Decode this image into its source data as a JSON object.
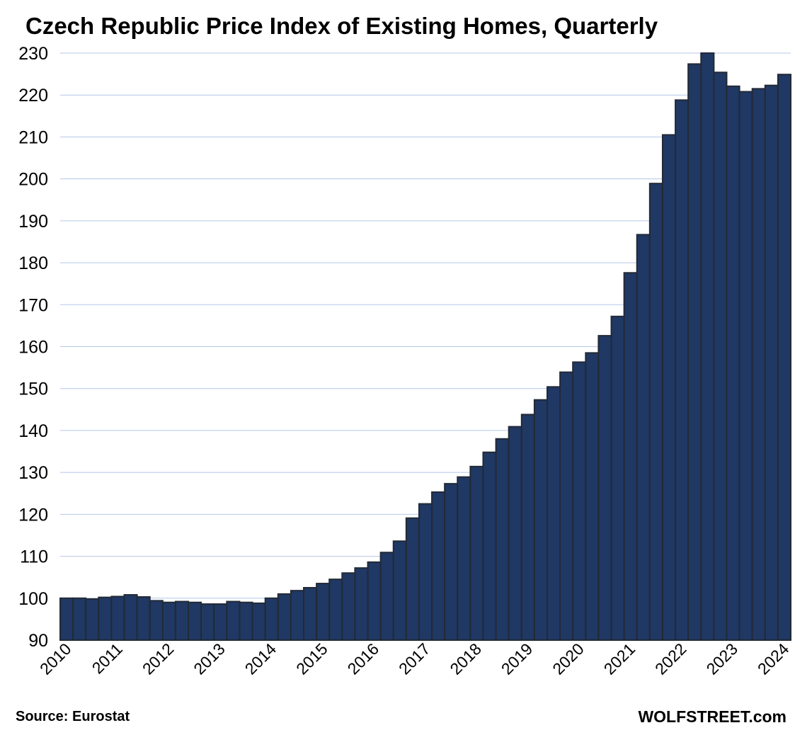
{
  "chart_data": {
    "type": "bar",
    "title": "Czech Republic Price Index of Existing Homes, Quarterly",
    "xlabel": "",
    "ylabel": "",
    "ylim": [
      90,
      230
    ],
    "yticks": [
      90,
      100,
      110,
      120,
      130,
      140,
      150,
      160,
      170,
      180,
      190,
      200,
      210,
      220,
      230
    ],
    "xtick_labels": [
      "2010",
      "2011",
      "2012",
      "2013",
      "2014",
      "2015",
      "2016",
      "2017",
      "2018",
      "2019",
      "2020",
      "2021",
      "2022",
      "2023",
      "2024"
    ],
    "grid": true,
    "categories": [
      "2010Q1",
      "2010Q2",
      "2010Q3",
      "2010Q4",
      "2011Q1",
      "2011Q2",
      "2011Q3",
      "2011Q4",
      "2012Q1",
      "2012Q2",
      "2012Q3",
      "2012Q4",
      "2013Q1",
      "2013Q2",
      "2013Q3",
      "2013Q4",
      "2014Q1",
      "2014Q2",
      "2014Q3",
      "2014Q4",
      "2015Q1",
      "2015Q2",
      "2015Q3",
      "2015Q4",
      "2016Q1",
      "2016Q2",
      "2016Q3",
      "2016Q4",
      "2017Q1",
      "2017Q2",
      "2017Q3",
      "2017Q4",
      "2018Q1",
      "2018Q2",
      "2018Q3",
      "2018Q4",
      "2019Q1",
      "2019Q2",
      "2019Q3",
      "2019Q4",
      "2020Q1",
      "2020Q2",
      "2020Q3",
      "2020Q4",
      "2021Q1",
      "2021Q2",
      "2021Q3",
      "2021Q4",
      "2022Q1",
      "2022Q2",
      "2022Q3",
      "2022Q4",
      "2023Q1",
      "2023Q2",
      "2023Q3",
      "2023Q4",
      "2024Q1"
    ],
    "values": [
      100,
      100,
      99.8,
      100.2,
      100.4,
      100.8,
      100.3,
      99.4,
      99,
      99.2,
      99,
      98.6,
      98.6,
      99.2,
      99,
      98.8,
      100,
      101,
      101.8,
      102.5,
      103.5,
      104.5,
      106,
      107.2,
      108.6,
      110.9,
      113.6,
      119.1,
      122.5,
      125.3,
      127.3,
      128.9,
      131.4,
      134.8,
      138,
      140.9,
      143.8,
      147.3,
      150.4,
      153.9,
      156.3,
      158.5,
      162.6,
      167.2,
      177.6,
      186.7,
      198.9,
      210.5,
      218.8,
      227.4,
      230.2,
      225.4,
      222.1,
      220.8,
      221.5,
      222.3,
      224.9
    ],
    "colors": {
      "bar": "#203864",
      "bar_edge": "#222a35",
      "grid": "#b4c7e7"
    }
  },
  "footer": {
    "source": "Source: Eurostat",
    "brand": "WOLFSTREET.com"
  }
}
